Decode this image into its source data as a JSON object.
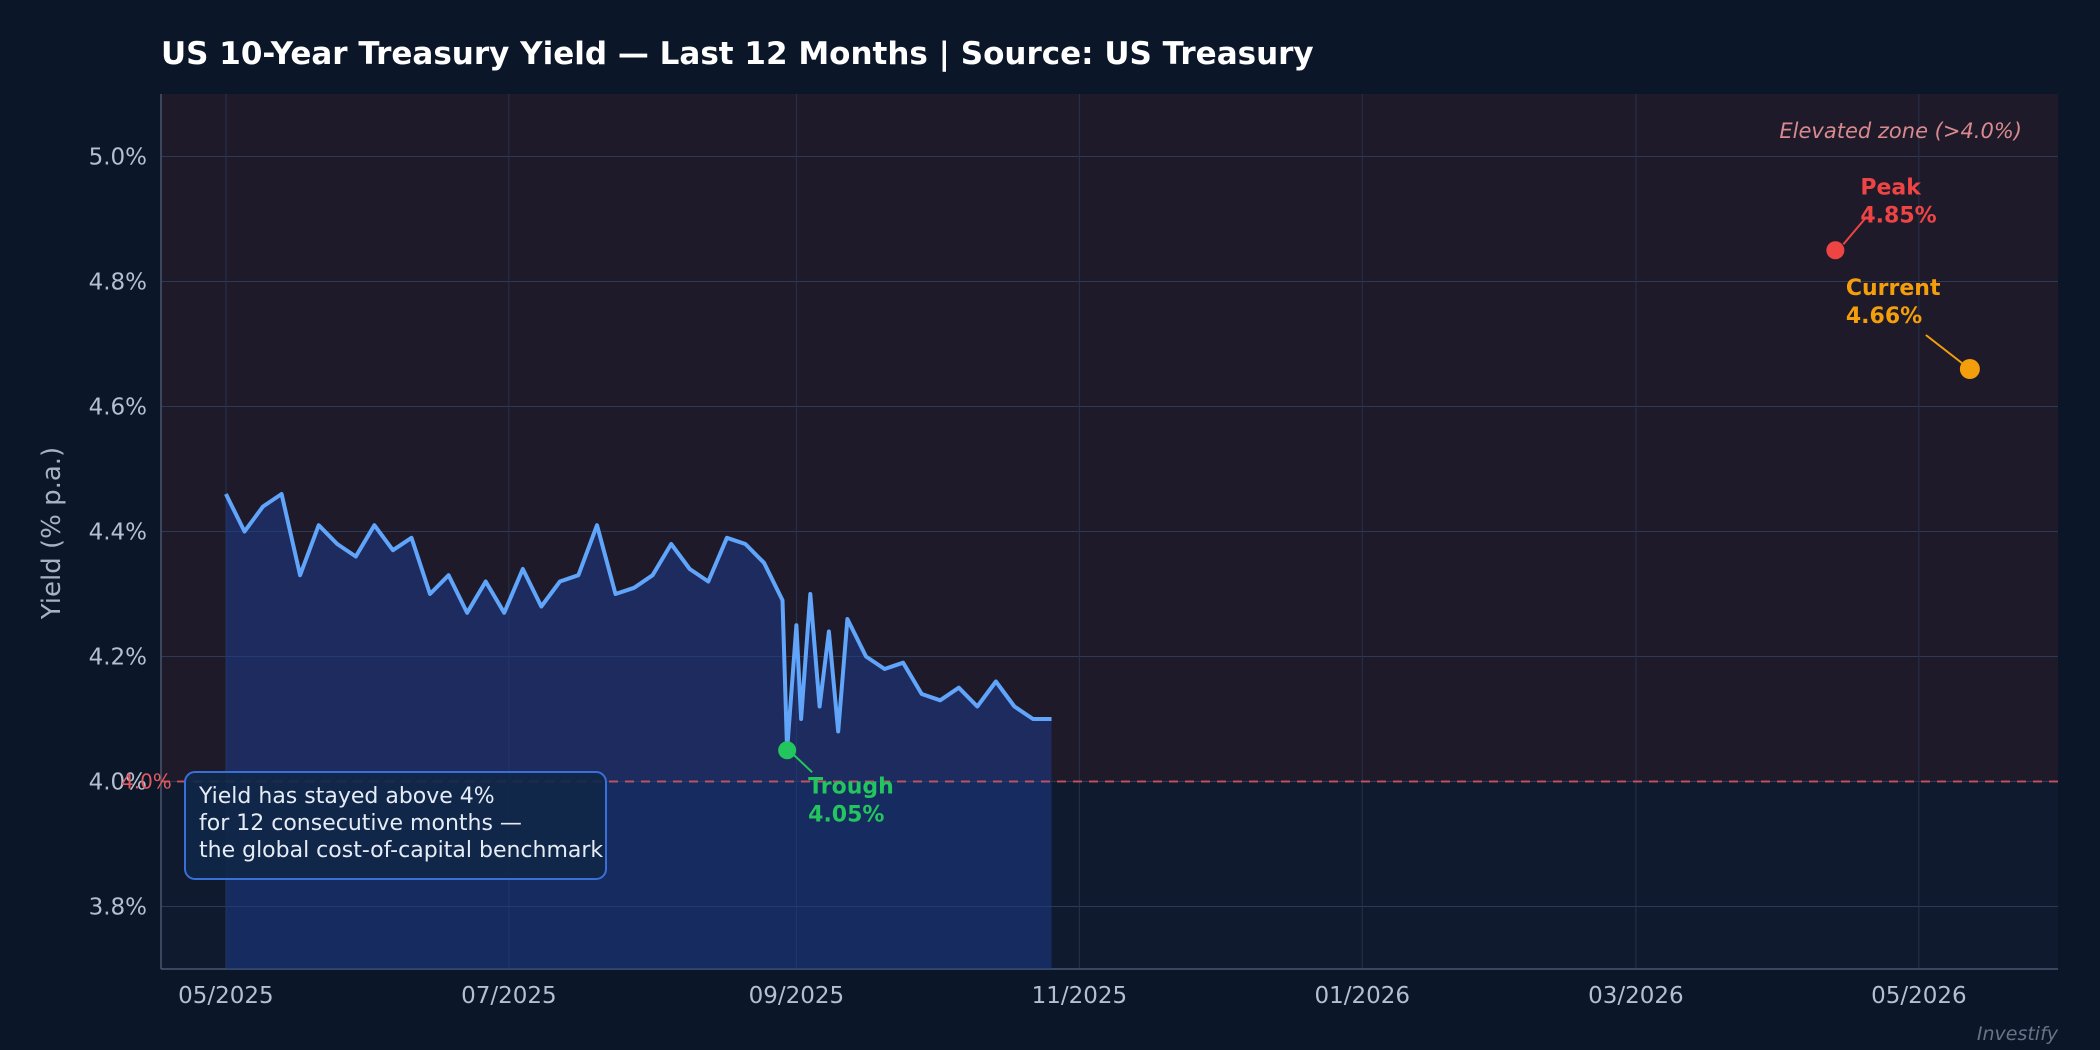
{
  "colors": {
    "background": "#0b1628",
    "plot_background": "#1e1a2a",
    "line": "#60a5fa",
    "area": "#1e3a8a",
    "peak": "#ef4444",
    "trough": "#22c55e",
    "current": "#f59e0b",
    "threshold": "#e05a5f",
    "note_border": "#3b6fd8",
    "note_fill": "#0f2748"
  },
  "chart_data": {
    "type": "line",
    "title": "US 10-Year Treasury Yield — Last 12 Months  |  Source: US Treasury",
    "xlabel": "",
    "ylabel": "Yield (% p.a.)",
    "ylim": [
      3.7,
      5.1
    ],
    "xlim": [
      "2025-04-17",
      "2026-05-31"
    ],
    "yticks": [
      3.8,
      4.0,
      4.2,
      4.4,
      4.6,
      4.8,
      5.0
    ],
    "ytick_labels": [
      "3.8%",
      "4.0%",
      "4.2%",
      "4.4%",
      "4.6%",
      "4.8%",
      "5.0%"
    ],
    "xticks": [
      "2025-05-01",
      "2025-07-01",
      "2025-09-01",
      "2025-11-01",
      "2026-01-01",
      "2026-03-01",
      "2026-05-01"
    ],
    "xtick_labels": [
      "05/2025",
      "07/2025",
      "09/2025",
      "11/2025",
      "01/2026",
      "03/2026",
      "05/2026"
    ],
    "grid": true,
    "threshold": {
      "value": 4.0,
      "label": "4.0%"
    },
    "elevated_zone_label": "Elevated zone (>4.0%)",
    "series": [
      {
        "values": [
          [
            "2025-05-01",
            4.46
          ],
          [
            "2025-05-05",
            4.4
          ],
          [
            "2025-05-09",
            4.44
          ],
          [
            "2025-05-13",
            4.46
          ],
          [
            "2025-05-17",
            4.33
          ],
          [
            "2025-05-21",
            4.41
          ],
          [
            "2025-05-25",
            4.38
          ],
          [
            "2025-05-29",
            4.36
          ],
          [
            "2025-06-02",
            4.41
          ],
          [
            "2025-06-06",
            4.37
          ],
          [
            "2025-06-10",
            4.39
          ],
          [
            "2025-06-14",
            4.3
          ],
          [
            "2025-06-18",
            4.33
          ],
          [
            "2025-06-22",
            4.27
          ],
          [
            "2025-06-26",
            4.32
          ],
          [
            "2025-06-30",
            4.27
          ],
          [
            "2025-07-04",
            4.34
          ],
          [
            "2025-07-08",
            4.28
          ],
          [
            "2025-07-12",
            4.32
          ],
          [
            "2025-07-16",
            4.33
          ],
          [
            "2025-07-20",
            4.41
          ],
          [
            "2025-07-24",
            4.3
          ],
          [
            "2025-07-28",
            4.31
          ],
          [
            "2025-08-01",
            4.33
          ],
          [
            "2025-08-05",
            4.38
          ],
          [
            "2025-08-09",
            4.34
          ],
          [
            "2025-08-13",
            4.32
          ],
          [
            "2025-08-17",
            4.39
          ],
          [
            "2025-08-21",
            4.38
          ],
          [
            "2025-08-25",
            4.35
          ],
          [
            "2025-08-29",
            4.29
          ],
          [
            "2025-09-01",
            4.25
          ],
          [
            "2025-09-04",
            4.3
          ],
          [
            "2025-09-08",
            4.24
          ],
          [
            "2025-09-12",
            4.26
          ],
          [
            "2025-09-16",
            4.2
          ],
          [
            "2025-09-20",
            4.18
          ],
          [
            "2025-09-24",
            4.19
          ],
          [
            "2025-09-28",
            4.14
          ],
          [
            "2025-10-02",
            4.13
          ],
          [
            "2025-10-06",
            4.15
          ],
          [
            "2025-10-10",
            4.12
          ],
          [
            "2025-10-14",
            4.16
          ],
          [
            "2025-10-18",
            4.12
          ],
          [
            "2025-10-22",
            4.1
          ],
          [
            "2025-10-26",
            4.1
          ],
          [
            "2025-08-30",
            4.05
          ],
          [
            "2025-09-02",
            4.1
          ],
          [
            "2025-09-06",
            4.12
          ],
          [
            "2025-09-10",
            4.08
          ]
        ]
      }
    ],
    "peak": {
      "label": "Peak",
      "value_label": "4.85%",
      "x": "2026-04-13",
      "y": 4.85
    },
    "trough": {
      "label": "Trough",
      "value_label": "4.05%",
      "x": "2025-08-30",
      "y": 4.05
    },
    "current": {
      "label": "Current",
      "value_label": "4.66%",
      "x": "2026-05-12",
      "y": 4.66
    },
    "note": [
      "Yield has stayed above 4%",
      "for 12 consecutive months —",
      "the global cost-of-capital benchmark"
    ],
    "watermark": "Investify"
  }
}
